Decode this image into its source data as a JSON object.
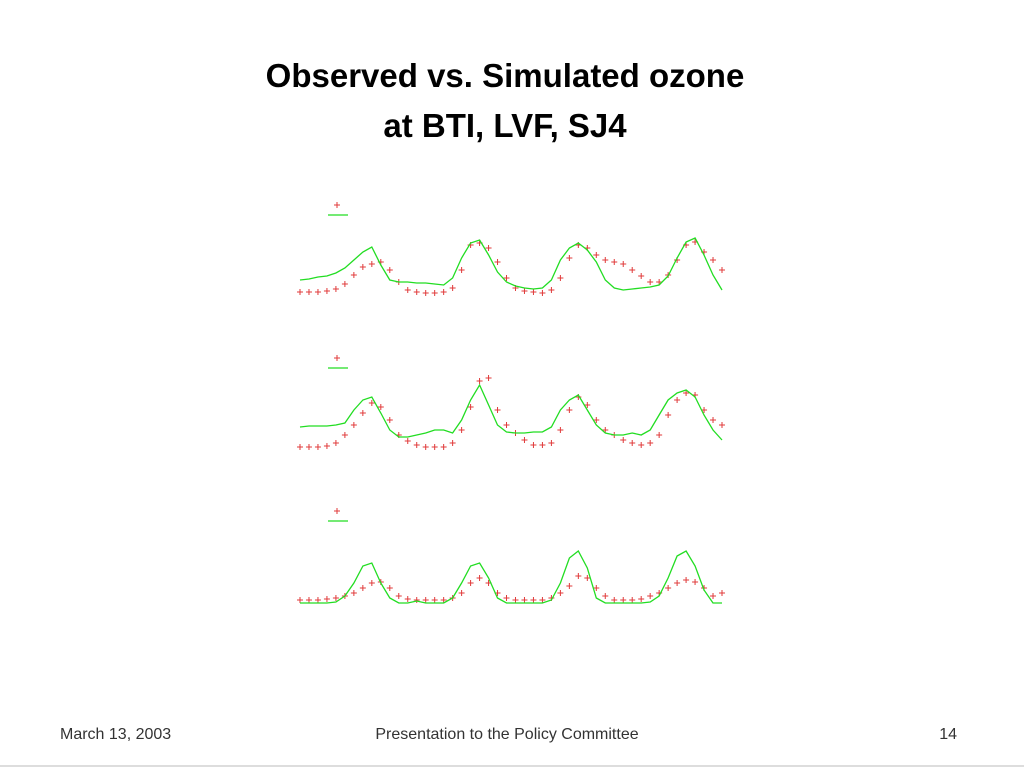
{
  "title": [
    "Observed vs. Simulated ozone",
    "at BTI, LVF, SJ4"
  ],
  "footer": {
    "date": "March 13, 2003",
    "center": "Presentation to the Policy Committee",
    "page": "14"
  },
  "chart_data": [
    {
      "type": "line",
      "ylim": [
        0,
        80
      ],
      "series": [
        {
          "color": "#e03a3a",
          "marker": "+",
          "values": [
            8,
            8,
            8,
            9,
            11,
            16,
            25,
            33,
            36,
            38,
            30,
            18,
            10,
            8,
            7,
            7,
            8,
            12,
            30,
            55,
            57,
            52,
            38,
            22,
            12,
            9,
            8,
            7,
            10,
            22,
            42,
            55,
            52,
            45,
            40,
            38,
            36,
            30,
            24,
            18,
            18,
            25,
            40,
            55,
            58,
            48,
            40,
            30
          ]
        },
        {
          "color": "#22dd22",
          "values": [
            20,
            21,
            23,
            24,
            27,
            32,
            40,
            48,
            53,
            35,
            20,
            18,
            18,
            17,
            17,
            16,
            15,
            22,
            42,
            57,
            60,
            45,
            28,
            18,
            14,
            12,
            11,
            12,
            20,
            40,
            52,
            57,
            50,
            38,
            20,
            12,
            10,
            11,
            12,
            13,
            15,
            24,
            42,
            58,
            62,
            45,
            25,
            10
          ]
        }
      ]
    },
    {
      "type": "line",
      "ylim": [
        0,
        80
      ],
      "series": [
        {
          "color": "#e03a3a",
          "marker": "+",
          "values": [
            8,
            8,
            8,
            9,
            12,
            20,
            30,
            42,
            52,
            48,
            35,
            20,
            14,
            10,
            8,
            8,
            8,
            12,
            25,
            48,
            74,
            77,
            45,
            30,
            22,
            15,
            10,
            10,
            12,
            25,
            45,
            58,
            50,
            35,
            25,
            20,
            15,
            12,
            10,
            12,
            20,
            40,
            55,
            62,
            60,
            45,
            35,
            30
          ]
        },
        {
          "color": "#22dd22",
          "values": [
            28,
            29,
            29,
            29,
            30,
            32,
            45,
            55,
            58,
            42,
            25,
            18,
            18,
            20,
            22,
            25,
            25,
            22,
            35,
            55,
            70,
            50,
            30,
            23,
            22,
            22,
            23,
            23,
            28,
            45,
            55,
            60,
            45,
            30,
            22,
            20,
            20,
            22,
            20,
            25,
            40,
            55,
            62,
            65,
            58,
            40,
            25,
            15
          ]
        }
      ]
    },
    {
      "type": "line",
      "ylim": [
        0,
        80
      ],
      "series": [
        {
          "color": "#e03a3a",
          "marker": "+",
          "values": [
            8,
            8,
            8,
            9,
            10,
            12,
            15,
            20,
            25,
            26,
            20,
            12,
            9,
            8,
            8,
            8,
            8,
            10,
            15,
            25,
            30,
            25,
            15,
            10,
            8,
            8,
            8,
            8,
            10,
            15,
            22,
            32,
            30,
            20,
            12,
            8,
            8,
            8,
            9,
            12,
            15,
            20,
            25,
            28,
            26,
            20,
            12,
            15
          ]
        },
        {
          "color": "#22dd22",
          "values": [
            5,
            5,
            5,
            5,
            6,
            12,
            25,
            42,
            45,
            25,
            10,
            5,
            5,
            7,
            5,
            5,
            5,
            10,
            25,
            42,
            45,
            30,
            10,
            5,
            5,
            5,
            5,
            5,
            8,
            25,
            50,
            57,
            40,
            10,
            5,
            5,
            5,
            5,
            5,
            6,
            12,
            30,
            52,
            57,
            42,
            18,
            5,
            5
          ]
        }
      ]
    }
  ]
}
